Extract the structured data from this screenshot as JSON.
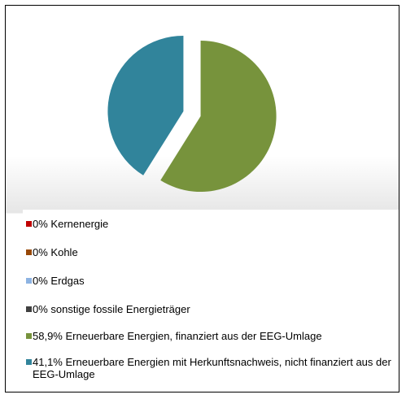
{
  "chart_data": {
    "type": "pie",
    "categories": [
      "Kernenergie",
      "Kohle",
      "Erdgas",
      "sonstige fossile Energieträger",
      "Erneuerbare Energien, finanziert aus der EEG-Umlage",
      "Erneuerbare Energien mit Herkunftsnachweis, nicht finanziert aus der EEG-Umlage"
    ],
    "values": [
      0,
      0,
      0,
      0,
      58.9,
      41.1
    ],
    "value_labels": [
      "0%",
      "0%",
      "0%",
      "0%",
      "58,9%",
      "41,1%"
    ],
    "colors": [
      "#c00000",
      "#984807",
      "#8db3e2",
      "#404040",
      "#77933c",
      "#31849b"
    ],
    "legend": "bottom"
  }
}
